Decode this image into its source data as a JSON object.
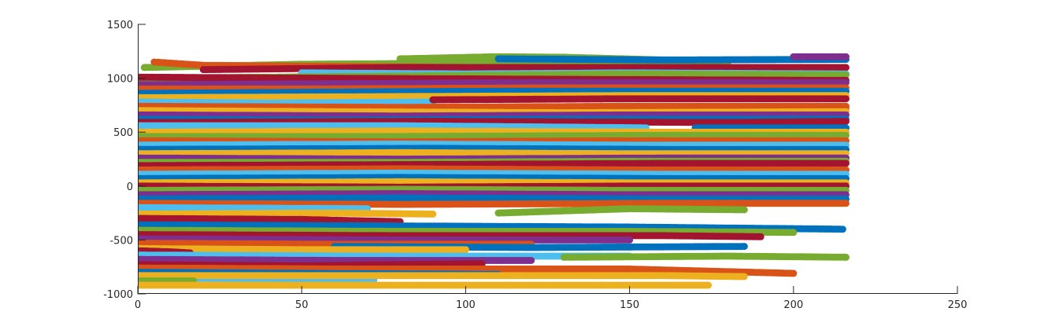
{
  "chart_data": {
    "type": "scatter",
    "title": "",
    "xlabel": "",
    "ylabel": "",
    "xlim": [
      0,
      250
    ],
    "ylim": [
      -1000,
      1500
    ],
    "xticks": [
      0,
      50,
      100,
      150,
      200,
      250
    ],
    "yticks": [
      -1000,
      -500,
      0,
      500,
      1000,
      1500
    ],
    "grid": false,
    "legend": "none",
    "colors": [
      "#0072BD",
      "#D95319",
      "#EDB120",
      "#7E2F8E",
      "#77AC30",
      "#4DBEEE",
      "#A2142F"
    ],
    "series": [
      {
        "color_index": 4,
        "points": [
          [
            2,
            1100
          ],
          [
            50,
            1130
          ],
          [
            100,
            1140
          ],
          [
            150,
            1130
          ],
          [
            180,
            1125
          ]
        ]
      },
      {
        "color_index": 4,
        "points": [
          [
            80,
            1180
          ],
          [
            110,
            1200
          ],
          [
            130,
            1195
          ],
          [
            160,
            1170
          ]
        ]
      },
      {
        "color_index": 1,
        "points": [
          [
            5,
            1150
          ],
          [
            20,
            1120
          ],
          [
            60,
            1110
          ],
          [
            100,
            1100
          ]
        ]
      },
      {
        "color_index": 6,
        "points": [
          [
            20,
            1080
          ],
          [
            80,
            1100
          ],
          [
            140,
            1100
          ],
          [
            216,
            1100
          ]
        ]
      },
      {
        "color_index": 0,
        "points": [
          [
            110,
            1180
          ],
          [
            160,
            1170
          ],
          [
            216,
            1175
          ]
        ]
      },
      {
        "color_index": 3,
        "points": [
          [
            200,
            1200
          ],
          [
            216,
            1200
          ]
        ]
      },
      {
        "color_index": 5,
        "points": [
          [
            50,
            1050
          ],
          [
            100,
            1040
          ],
          [
            150,
            1050
          ],
          [
            216,
            1040
          ]
        ]
      },
      {
        "color_index": 4,
        "points": [
          [
            0,
            1000
          ],
          [
            80,
            1020
          ],
          [
            150,
            1040
          ],
          [
            216,
            1030
          ]
        ]
      },
      {
        "color_index": 6,
        "points": [
          [
            0,
            1010
          ],
          [
            60,
            1000
          ],
          [
            130,
            990
          ],
          [
            216,
            980
          ]
        ]
      },
      {
        "color_index": 3,
        "points": [
          [
            0,
            940
          ],
          [
            60,
            950
          ],
          [
            120,
            960
          ],
          [
            216,
            960
          ]
        ]
      },
      {
        "color_index": 1,
        "points": [
          [
            0,
            900
          ],
          [
            50,
            900
          ],
          [
            120,
            910
          ],
          [
            216,
            910
          ]
        ]
      },
      {
        "color_index": 0,
        "points": [
          [
            0,
            860
          ],
          [
            50,
            870
          ],
          [
            110,
            880
          ],
          [
            216,
            880
          ]
        ]
      },
      {
        "color_index": 2,
        "points": [
          [
            0,
            820
          ],
          [
            80,
            830
          ],
          [
            150,
            840
          ],
          [
            216,
            840
          ]
        ]
      },
      {
        "color_index": 5,
        "points": [
          [
            0,
            780
          ],
          [
            40,
            770
          ],
          [
            90,
            780
          ]
        ]
      },
      {
        "color_index": 6,
        "points": [
          [
            90,
            800
          ],
          [
            150,
            810
          ],
          [
            216,
            810
          ]
        ]
      },
      {
        "color_index": 4,
        "points": [
          [
            90,
            700
          ],
          [
            130,
            680
          ],
          [
            170,
            700
          ],
          [
            216,
            720
          ]
        ]
      },
      {
        "color_index": 1,
        "points": [
          [
            0,
            740
          ],
          [
            80,
            730
          ],
          [
            150,
            740
          ],
          [
            216,
            740
          ]
        ]
      },
      {
        "color_index": 2,
        "points": [
          [
            0,
            700
          ],
          [
            60,
            690
          ],
          [
            130,
            680
          ],
          [
            216,
            690
          ]
        ]
      },
      {
        "color_index": 3,
        "points": [
          [
            0,
            660
          ],
          [
            80,
            650
          ],
          [
            150,
            660
          ],
          [
            216,
            660
          ]
        ]
      },
      {
        "color_index": 0,
        "points": [
          [
            0,
            620
          ],
          [
            60,
            610
          ],
          [
            130,
            620
          ],
          [
            216,
            620
          ]
        ]
      },
      {
        "color_index": 6,
        "points": [
          [
            0,
            590
          ],
          [
            90,
            600
          ],
          [
            180,
            590
          ],
          [
            216,
            600
          ]
        ]
      },
      {
        "color_index": 5,
        "points": [
          [
            0,
            560
          ],
          [
            80,
            560
          ],
          [
            155,
            540
          ]
        ]
      },
      {
        "color_index": 0,
        "points": [
          [
            170,
            540
          ],
          [
            216,
            540
          ]
        ]
      },
      {
        "color_index": 2,
        "points": [
          [
            0,
            500
          ],
          [
            80,
            510
          ],
          [
            160,
            500
          ],
          [
            216,
            500
          ]
        ]
      },
      {
        "color_index": 4,
        "points": [
          [
            0,
            460
          ],
          [
            80,
            460
          ],
          [
            160,
            470
          ],
          [
            216,
            470
          ]
        ]
      },
      {
        "color_index": 1,
        "points": [
          [
            0,
            420
          ],
          [
            80,
            410
          ],
          [
            150,
            420
          ],
          [
            216,
            420
          ]
        ]
      },
      {
        "color_index": 5,
        "points": [
          [
            0,
            380
          ],
          [
            80,
            390
          ],
          [
            150,
            380
          ],
          [
            216,
            380
          ]
        ]
      },
      {
        "color_index": 0,
        "points": [
          [
            0,
            340
          ],
          [
            90,
            350
          ],
          [
            160,
            340
          ],
          [
            216,
            340
          ]
        ]
      },
      {
        "color_index": 2,
        "points": [
          [
            0,
            300
          ],
          [
            80,
            310
          ],
          [
            150,
            300
          ],
          [
            216,
            300
          ]
        ]
      },
      {
        "color_index": 3,
        "points": [
          [
            0,
            260
          ],
          [
            80,
            250
          ],
          [
            160,
            260
          ],
          [
            216,
            260
          ]
        ]
      },
      {
        "color_index": 4,
        "points": [
          [
            0,
            220
          ],
          [
            80,
            220
          ],
          [
            150,
            230
          ],
          [
            216,
            230
          ]
        ]
      },
      {
        "color_index": 6,
        "points": [
          [
            0,
            190
          ],
          [
            90,
            200
          ],
          [
            160,
            210
          ],
          [
            216,
            210
          ]
        ]
      },
      {
        "color_index": 1,
        "points": [
          [
            0,
            150
          ],
          [
            80,
            160
          ],
          [
            150,
            150
          ],
          [
            216,
            150
          ]
        ]
      },
      {
        "color_index": 5,
        "points": [
          [
            0,
            110
          ],
          [
            80,
            120
          ],
          [
            160,
            110
          ],
          [
            216,
            110
          ]
        ]
      },
      {
        "color_index": 0,
        "points": [
          [
            0,
            70
          ],
          [
            80,
            80
          ],
          [
            160,
            70
          ],
          [
            216,
            70
          ]
        ]
      },
      {
        "color_index": 2,
        "points": [
          [
            0,
            30
          ],
          [
            80,
            40
          ],
          [
            150,
            30
          ],
          [
            216,
            30
          ]
        ]
      },
      {
        "color_index": 6,
        "points": [
          [
            0,
            0
          ],
          [
            80,
            -10
          ],
          [
            150,
            0
          ],
          [
            216,
            0
          ]
        ]
      },
      {
        "color_index": 4,
        "points": [
          [
            0,
            -40
          ],
          [
            80,
            -30
          ],
          [
            150,
            -40
          ],
          [
            216,
            -40
          ]
        ]
      },
      {
        "color_index": 3,
        "points": [
          [
            0,
            -80
          ],
          [
            80,
            -70
          ],
          [
            150,
            -80
          ],
          [
            216,
            -80
          ]
        ]
      },
      {
        "color_index": 0,
        "points": [
          [
            0,
            -120
          ],
          [
            80,
            -110
          ],
          [
            160,
            -120
          ],
          [
            216,
            -120
          ]
        ]
      },
      {
        "color_index": 1,
        "points": [
          [
            0,
            -160
          ],
          [
            80,
            -170
          ],
          [
            160,
            -160
          ],
          [
            216,
            -160
          ]
        ]
      },
      {
        "color_index": 5,
        "points": [
          [
            0,
            -200
          ],
          [
            70,
            -210
          ]
        ]
      },
      {
        "color_index": 4,
        "points": [
          [
            110,
            -250
          ],
          [
            150,
            -210
          ],
          [
            185,
            -220
          ]
        ]
      },
      {
        "color_index": 2,
        "points": [
          [
            0,
            -260
          ],
          [
            60,
            -250
          ],
          [
            90,
            -260
          ]
        ]
      },
      {
        "color_index": 6,
        "points": [
          [
            0,
            -300
          ],
          [
            50,
            -310
          ],
          [
            80,
            -330
          ]
        ]
      },
      {
        "color_index": 0,
        "points": [
          [
            0,
            -360
          ],
          [
            80,
            -370
          ],
          [
            150,
            -380
          ],
          [
            215,
            -400
          ]
        ]
      },
      {
        "color_index": 4,
        "points": [
          [
            0,
            -410
          ],
          [
            80,
            -420
          ],
          [
            150,
            -420
          ],
          [
            200,
            -430
          ]
        ]
      },
      {
        "color_index": 6,
        "points": [
          [
            0,
            -450
          ],
          [
            80,
            -460
          ],
          [
            160,
            -460
          ],
          [
            190,
            -470
          ]
        ]
      },
      {
        "color_index": 3,
        "points": [
          [
            0,
            -490
          ],
          [
            80,
            -500
          ],
          [
            150,
            -500
          ]
        ]
      },
      {
        "color_index": 1,
        "points": [
          [
            0,
            -530
          ],
          [
            60,
            -540
          ],
          [
            120,
            -540
          ]
        ]
      },
      {
        "color_index": 0,
        "points": [
          [
            60,
            -560
          ],
          [
            120,
            -570
          ],
          [
            185,
            -560
          ]
        ]
      },
      {
        "color_index": 2,
        "points": [
          [
            0,
            -580
          ],
          [
            50,
            -590
          ],
          [
            100,
            -590
          ]
        ]
      },
      {
        "color_index": 6,
        "points": [
          [
            0,
            -600
          ],
          [
            10,
            -610
          ],
          [
            16,
            -620
          ]
        ]
      },
      {
        "color_index": 5,
        "points": [
          [
            0,
            -640
          ],
          [
            80,
            -650
          ],
          [
            150,
            -650
          ]
        ]
      },
      {
        "color_index": 4,
        "points": [
          [
            130,
            -660
          ],
          [
            180,
            -650
          ],
          [
            216,
            -660
          ]
        ]
      },
      {
        "color_index": 3,
        "points": [
          [
            0,
            -680
          ],
          [
            60,
            -690
          ],
          [
            120,
            -690
          ]
        ]
      },
      {
        "color_index": 6,
        "points": [
          [
            0,
            -730
          ],
          [
            50,
            -740
          ],
          [
            105,
            -720
          ]
        ]
      },
      {
        "color_index": 1,
        "points": [
          [
            0,
            -760
          ],
          [
            70,
            -770
          ],
          [
            150,
            -770
          ],
          [
            200,
            -810
          ]
        ]
      },
      {
        "color_index": 0,
        "points": [
          [
            0,
            -800
          ],
          [
            50,
            -810
          ],
          [
            110,
            -820
          ]
        ]
      },
      {
        "color_index": 5,
        "points": [
          [
            0,
            -850
          ],
          [
            40,
            -860
          ],
          [
            72,
            -870
          ]
        ]
      },
      {
        "color_index": 2,
        "points": [
          [
            0,
            -830
          ],
          [
            80,
            -830
          ],
          [
            160,
            -830
          ],
          [
            185,
            -840
          ]
        ]
      },
      {
        "color_index": 4,
        "points": [
          [
            0,
            -880
          ],
          [
            10,
            -880
          ],
          [
            17,
            -880
          ]
        ]
      },
      {
        "color_index": 2,
        "points": [
          [
            0,
            -920
          ],
          [
            80,
            -920
          ],
          [
            174,
            -920
          ]
        ]
      }
    ]
  }
}
